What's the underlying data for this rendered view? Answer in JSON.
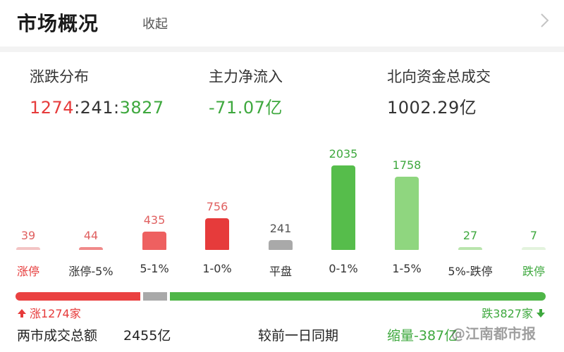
{
  "header": {
    "title": "市场概况",
    "collapse_label": "收起"
  },
  "stats": {
    "breadth": {
      "label": "涨跌分布",
      "up": "1274",
      "sep1": ":",
      "flat": "241",
      "sep2": ":",
      "down": "3827"
    },
    "main_flow": {
      "label": "主力净流入",
      "value": "-71.07亿"
    },
    "northbound": {
      "label": "北向资金总成交",
      "value": "1002.29亿"
    }
  },
  "chart_data": {
    "type": "bar",
    "categories": [
      "涨停",
      "涨停-5%",
      "5-1%",
      "1-0%",
      "平盘",
      "0-1%",
      "1-5%",
      "5%-跌停",
      "跌停"
    ],
    "values": [
      39,
      44,
      435,
      756,
      241,
      2035,
      1758,
      27,
      7
    ],
    "colors": [
      "#f3c4c4",
      "#f08a8a",
      "#ee6060",
      "#e63b3b",
      "#a9a9a9",
      "#56bd4b",
      "#8fd67f",
      "#b9e5ad",
      "#e3f3dd"
    ],
    "label_colors": [
      "#e63b3b",
      "#333333",
      "#333333",
      "#333333",
      "#333333",
      "#333333",
      "#333333",
      "#333333",
      "#3ea83e"
    ],
    "value_colors": [
      "#e06060",
      "#e06060",
      "#e06060",
      "#e06060",
      "#555555",
      "#3ea83e",
      "#3ea83e",
      "#3ea83e",
      "#3ea83e"
    ]
  },
  "distribution": {
    "up_count_label": "涨1274家",
    "down_count_label": "跌3827家",
    "up": 1274,
    "flat": 241,
    "down": 3827,
    "colors": {
      "up": "#ea4141",
      "flat": "#a9a9a9",
      "down": "#4fb648"
    }
  },
  "turnover": {
    "label": "两市成交总额",
    "value": "2455亿",
    "compare_label": "较前一日同期",
    "compare_value": "缩量-387亿"
  },
  "watermark": "@江南都市报",
  "icons": {
    "expand": "chevron-right-icon",
    "up_arrow": "arrow-up-icon",
    "down_arrow": "arrow-down-icon"
  }
}
